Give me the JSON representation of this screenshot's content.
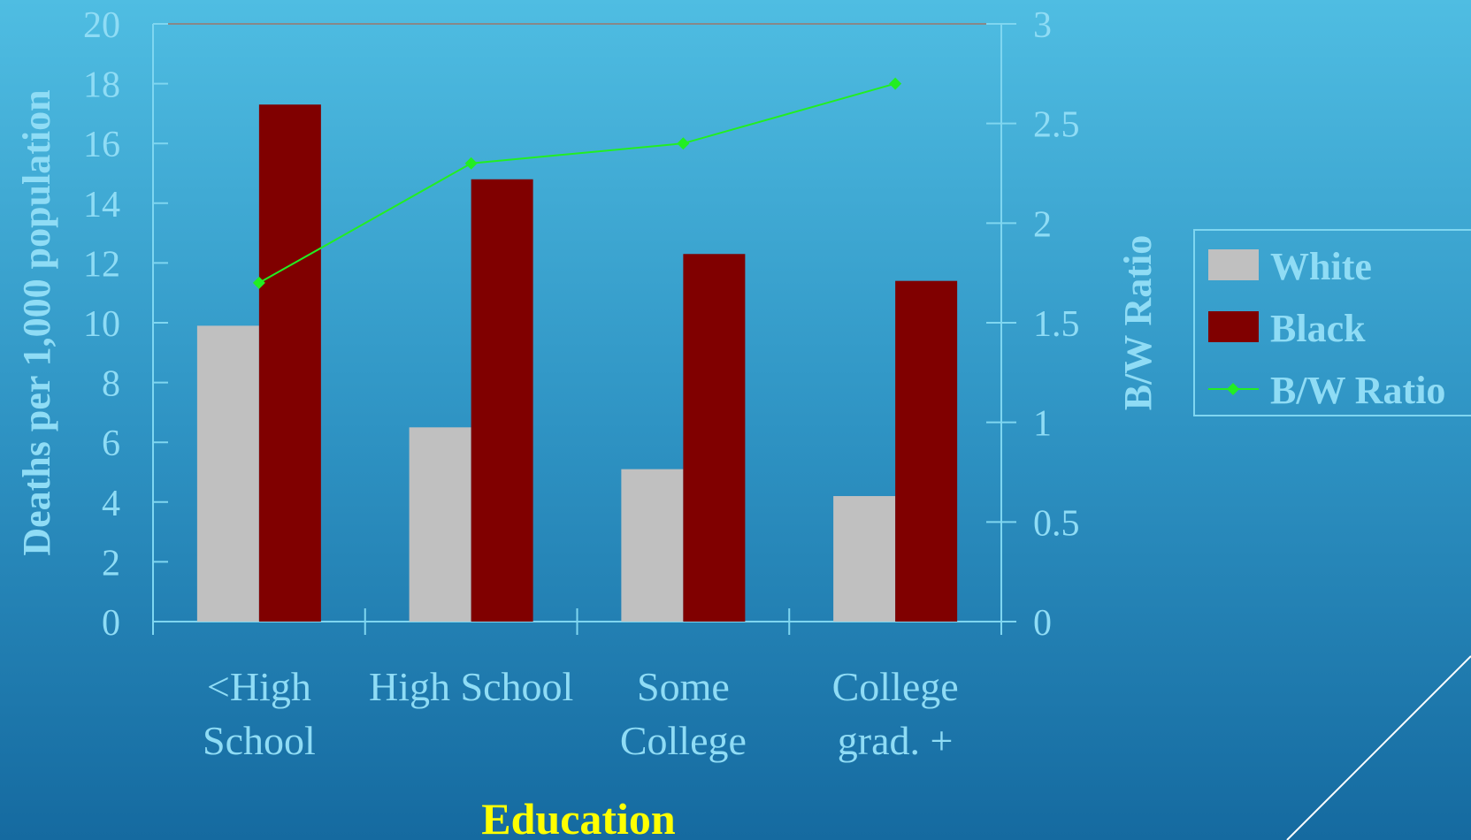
{
  "colors": {
    "axis": "#7fd6f0",
    "text": "#8fdcf5",
    "white_bar": "#c0c0c0",
    "black_bar": "#800000",
    "ratio_line": "#22ee22",
    "xlabel": "#ffff00",
    "top_border": "#888888"
  },
  "chart_data": {
    "type": "bar",
    "categories": [
      [
        "<High",
        "School"
      ],
      [
        "High School"
      ],
      [
        "Some",
        "College"
      ],
      [
        "College",
        "grad. +"
      ]
    ],
    "series": [
      {
        "name": "White",
        "type": "bar",
        "axis": "left",
        "values": [
          9.9,
          6.5,
          5.1,
          4.2
        ]
      },
      {
        "name": "Black",
        "type": "bar",
        "axis": "left",
        "values": [
          17.3,
          14.8,
          12.3,
          11.4
        ]
      },
      {
        "name": "B/W Ratio",
        "type": "line",
        "axis": "right",
        "values": [
          1.7,
          2.3,
          2.4,
          2.7
        ]
      }
    ],
    "xlabel": "Education",
    "ylabel": "Deaths per 1,000 population",
    "y2label": "B/W Ratio",
    "ylim": [
      0,
      20
    ],
    "y2lim": [
      0,
      3
    ],
    "yticks": [
      "0",
      "2",
      "4",
      "6",
      "8",
      "10",
      "12",
      "14",
      "16",
      "18",
      "20"
    ],
    "y2ticks": [
      "0",
      "0.5",
      "1",
      "1.5",
      "2",
      "2.5",
      "3"
    ],
    "legend_position": "right",
    "grid": false
  }
}
